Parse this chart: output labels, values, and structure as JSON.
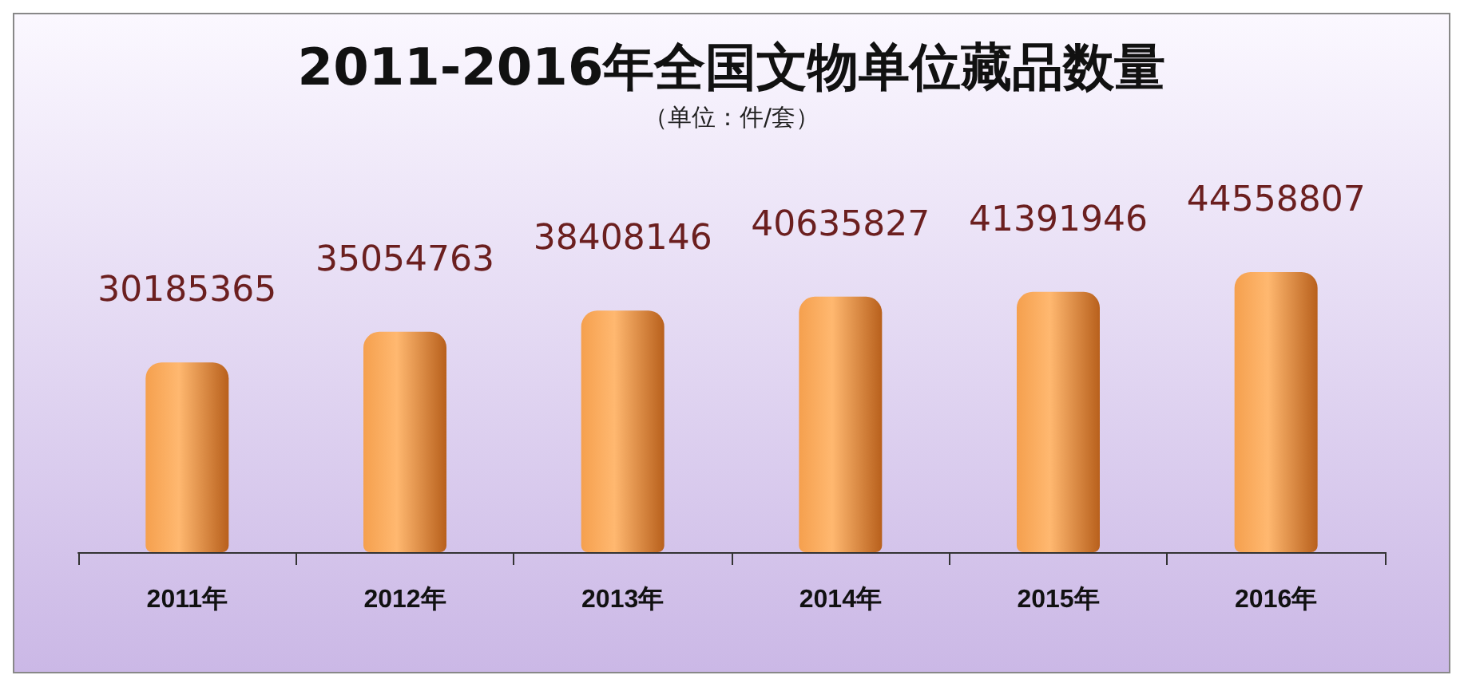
{
  "chart_data": {
    "type": "bar",
    "title": "2011-2016年全国文物单位藏品数量",
    "subtitle": "（单位：件/套）",
    "categories": [
      "2011年",
      "2012年",
      "2013年",
      "2014年",
      "2015年",
      "2016年"
    ],
    "values": [
      30185365,
      35054763,
      38408146,
      40635827,
      41391946,
      44558807
    ],
    "color": "#f5a04e",
    "data_labels": true
  }
}
